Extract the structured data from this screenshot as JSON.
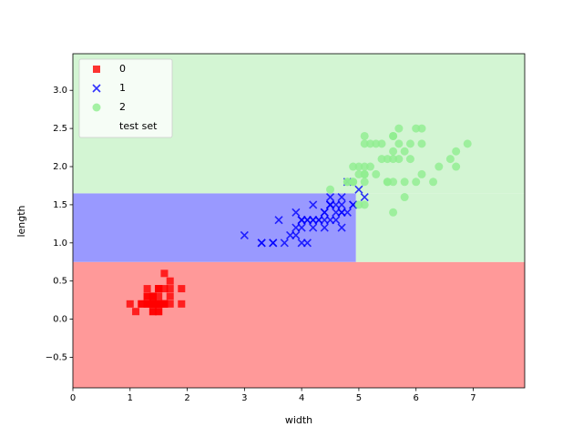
{
  "chart_data": {
    "type": "scatter",
    "x_label": "width",
    "y_label": "length",
    "xlim": [
      0,
      7.9
    ],
    "ylim": [
      -0.9,
      3.48
    ],
    "xticks": [
      0,
      1,
      2,
      3,
      4,
      5,
      6,
      7
    ],
    "yticks": [
      {
        "value": -0.5,
        "label": "−0.5"
      },
      {
        "value": 0,
        "label": "0.0"
      },
      {
        "value": 0.5,
        "label": "0.5"
      },
      {
        "value": 1,
        "label": "1.0"
      },
      {
        "value": 1.5,
        "label": "1.5"
      },
      {
        "value": 2,
        "label": "2.0"
      },
      {
        "value": 2.5,
        "label": "2.5"
      },
      {
        "value": 3,
        "label": "3.0"
      }
    ],
    "legend": "upper left",
    "regions": [
      {
        "series": 0,
        "color": "#ff9999",
        "xlim": [
          0,
          7.9
        ],
        "ylim": [
          -0.9,
          0.75
        ]
      },
      {
        "series": 1,
        "color": "#9999ff",
        "xlim": [
          0,
          4.95
        ],
        "ylim": [
          0.75,
          1.65
        ]
      },
      {
        "series": 2,
        "color": "#d3f5d3",
        "xlim": [
          4.95,
          7.9
        ],
        "ylim": [
          0.75,
          1.65
        ]
      },
      {
        "series": 2,
        "color": "#d3f5d3",
        "xlim": [
          0,
          7.9
        ],
        "ylim": [
          1.65,
          3.48
        ]
      }
    ],
    "series": [
      {
        "name": "0",
        "color": "#ff0000",
        "marker": "square",
        "x": [
          1.4,
          1.4,
          1.3,
          1.5,
          1.4,
          1.7,
          1.4,
          1.5,
          1.4,
          1.5,
          1.5,
          1.6,
          1.4,
          1.1,
          1.2,
          1.5,
          1.3,
          1.4,
          1.7,
          1.5,
          1.7,
          1.5,
          1.0,
          1.7,
          1.9,
          1.6,
          1.6,
          1.5,
          1.4,
          1.6,
          1.6,
          1.5,
          1.5,
          1.4,
          1.5,
          1.2,
          1.3,
          1.4,
          1.3,
          1.5,
          1.3,
          1.3,
          1.3,
          1.6,
          1.9,
          1.4,
          1.6,
          1.4,
          1.5,
          1.4
        ],
        "values": [
          0.2,
          0.2,
          0.2,
          0.2,
          0.2,
          0.4,
          0.3,
          0.2,
          0.2,
          0.1,
          0.2,
          0.2,
          0.1,
          0.1,
          0.2,
          0.4,
          0.4,
          0.3,
          0.3,
          0.3,
          0.2,
          0.4,
          0.2,
          0.5,
          0.2,
          0.2,
          0.4,
          0.2,
          0.2,
          0.2,
          0.2,
          0.4,
          0.1,
          0.2,
          0.2,
          0.2,
          0.2,
          0.1,
          0.2,
          0.2,
          0.3,
          0.3,
          0.2,
          0.6,
          0.4,
          0.3,
          0.2,
          0.2,
          0.2,
          0.2
        ]
      },
      {
        "name": "1",
        "color": "#0000ff",
        "marker": "x",
        "x": [
          4.7,
          4.5,
          4.9,
          4.0,
          4.6,
          4.5,
          4.7,
          3.3,
          4.6,
          3.9,
          3.5,
          4.2,
          4.0,
          4.7,
          3.6,
          4.4,
          4.5,
          4.1,
          4.5,
          3.9,
          4.8,
          4.0,
          4.9,
          4.7,
          4.3,
          4.4,
          4.8,
          5.0,
          4.5,
          3.5,
          3.8,
          3.7,
          3.9,
          5.1,
          4.5,
          4.5,
          4.7,
          4.4,
          4.1,
          4.0,
          4.4,
          4.6,
          4.0,
          3.3,
          4.2,
          4.2,
          4.2,
          4.3,
          3.0,
          4.1
        ],
        "values": [
          1.4,
          1.5,
          1.5,
          1.3,
          1.5,
          1.3,
          1.6,
          1.0,
          1.3,
          1.4,
          1.0,
          1.5,
          1.0,
          1.4,
          1.3,
          1.4,
          1.5,
          1.0,
          1.5,
          1.1,
          1.8,
          1.3,
          1.5,
          1.2,
          1.3,
          1.4,
          1.4,
          1.7,
          1.5,
          1.0,
          1.1,
          1.0,
          1.2,
          1.6,
          1.5,
          1.6,
          1.5,
          1.3,
          1.3,
          1.3,
          1.2,
          1.4,
          1.2,
          1.0,
          1.3,
          1.2,
          1.3,
          1.3,
          1.1,
          1.3
        ]
      },
      {
        "name": "2",
        "color": "#90ee90",
        "marker": "circle",
        "x": [
          6.0,
          5.1,
          5.9,
          5.6,
          5.8,
          6.6,
          4.5,
          6.3,
          5.8,
          6.1,
          5.1,
          5.3,
          5.5,
          5.0,
          5.1,
          5.3,
          5.5,
          6.7,
          6.9,
          5.0,
          5.7,
          4.9,
          6.7,
          4.9,
          5.7,
          6.0,
          4.8,
          4.9,
          5.6,
          5.8,
          6.1,
          6.4,
          5.6,
          5.1,
          5.6,
          6.1,
          5.6,
          5.5,
          4.8,
          5.4,
          5.6,
          5.1,
          5.1,
          5.9,
          5.7,
          5.2,
          5.0,
          5.2,
          5.4,
          5.1
        ],
        "values": [
          2.5,
          1.9,
          2.1,
          1.8,
          2.2,
          2.1,
          1.7,
          1.8,
          1.8,
          2.5,
          2.0,
          1.9,
          2.1,
          2.0,
          2.4,
          2.3,
          1.8,
          2.2,
          2.3,
          1.5,
          2.3,
          2.0,
          2.0,
          1.8,
          2.1,
          1.8,
          1.8,
          1.8,
          2.1,
          1.6,
          1.9,
          2.0,
          2.2,
          1.5,
          1.4,
          2.3,
          2.4,
          1.8,
          1.8,
          2.1,
          2.4,
          2.3,
          1.9,
          2.3,
          2.5,
          2.3,
          1.9,
          2.0,
          2.3,
          1.8
        ]
      },
      {
        "name": "test set",
        "color": "none",
        "marker": "circle",
        "x": [],
        "values": []
      }
    ]
  }
}
